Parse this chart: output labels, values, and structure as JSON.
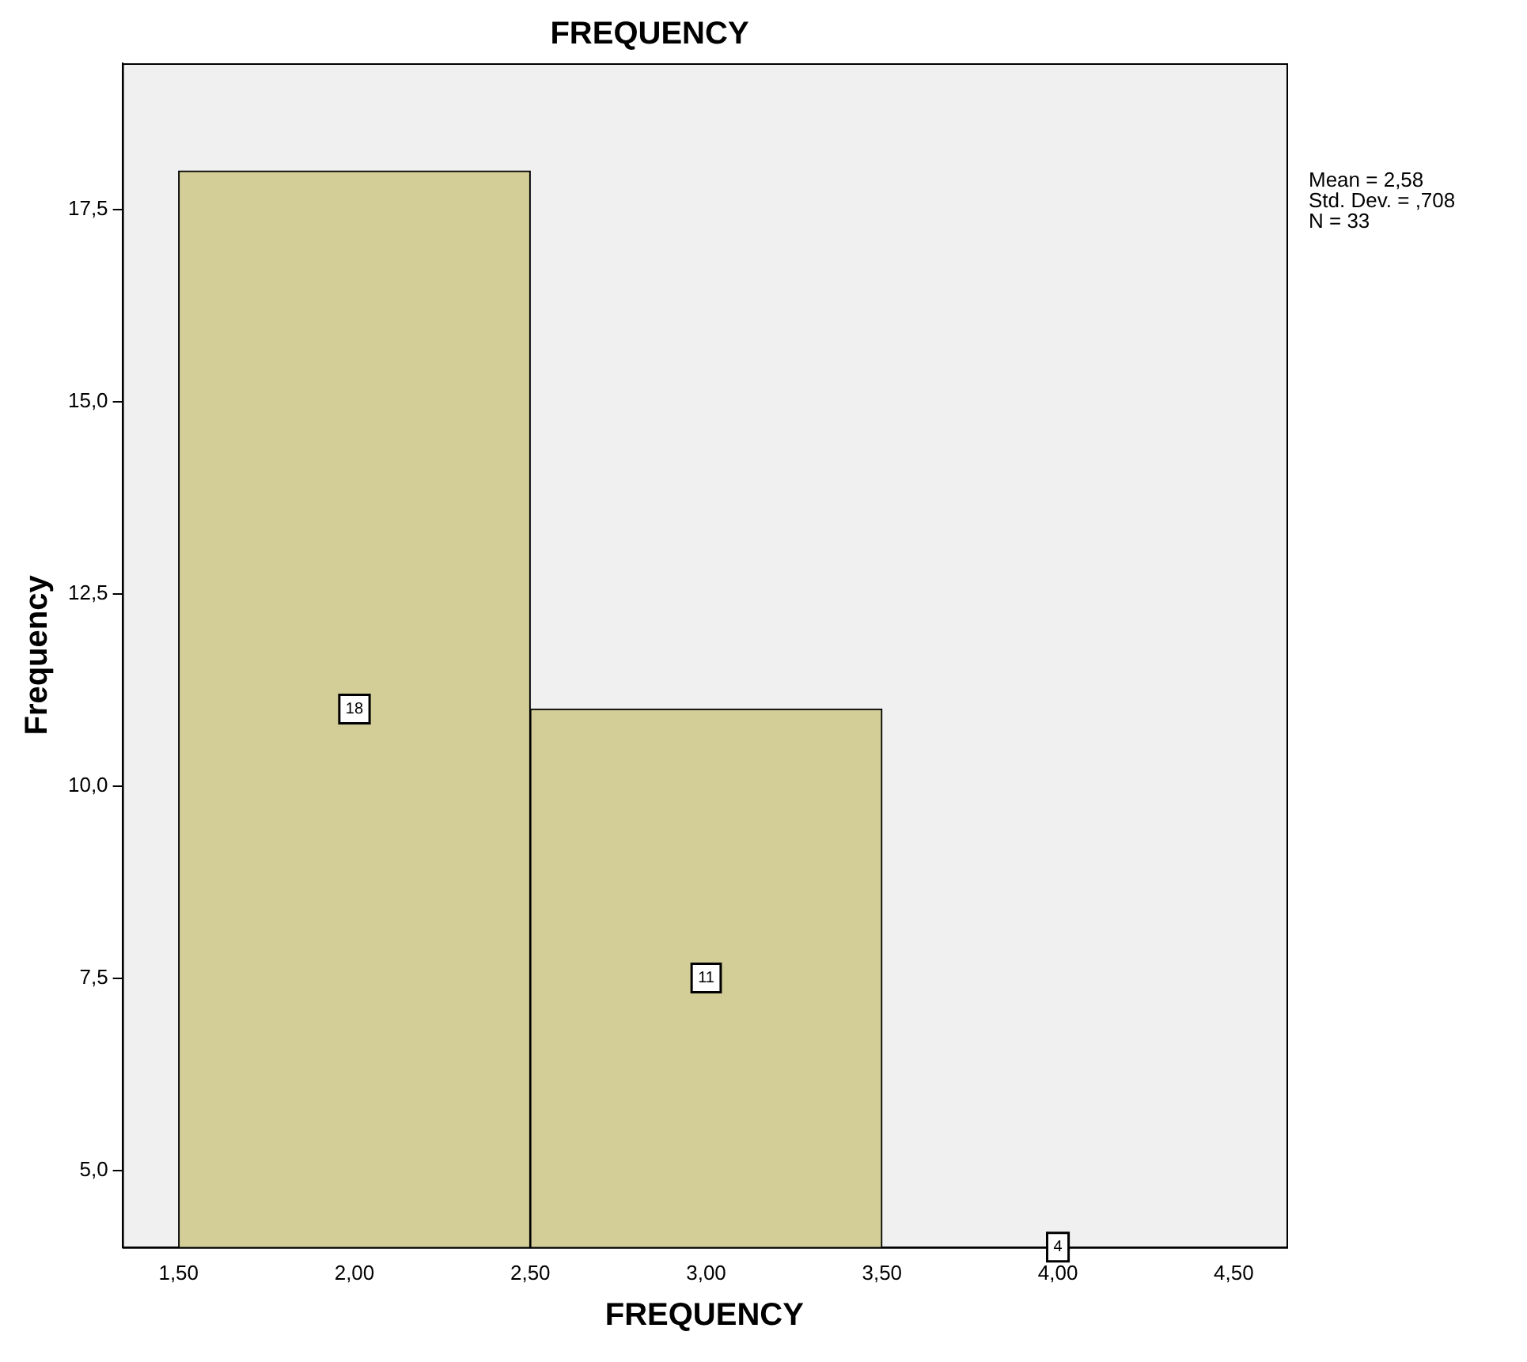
{
  "chart_data": {
    "type": "histogram",
    "title": "FREQUENCY",
    "xlabel": "FREQUENCY",
    "ylabel": "Frequency",
    "bins": [
      1.5,
      2.5,
      3.5,
      4.5
    ],
    "values": [
      18,
      11,
      4
    ],
    "color": "#d3ce98",
    "data_labels": true,
    "xlim": [
      1.34,
      4.65
    ],
    "xticks": [
      {
        "value": 1.5,
        "label": "1,50"
      },
      {
        "value": 2,
        "label": "2,00"
      },
      {
        "value": 2.5,
        "label": "2,50"
      },
      {
        "value": 3,
        "label": "3,00"
      },
      {
        "value": 3.5,
        "label": "3,50"
      },
      {
        "value": 4,
        "label": "4,00"
      },
      {
        "value": 4.5,
        "label": "4,50"
      }
    ],
    "ylim": [
      4,
      19.4
    ],
    "yticks": [
      {
        "value": 5,
        "label": "5,0"
      },
      {
        "value": 7.5,
        "label": "7,5"
      },
      {
        "value": 10,
        "label": "10,0"
      },
      {
        "value": 12.5,
        "label": "12,5"
      },
      {
        "value": 15,
        "label": "15,0"
      },
      {
        "value": 17.5,
        "label": "17,5"
      }
    ],
    "grid": false,
    "legend": false,
    "annotations": [
      "Mean = 2,58",
      "Std. Dev. = ,708",
      "N = 33"
    ]
  }
}
